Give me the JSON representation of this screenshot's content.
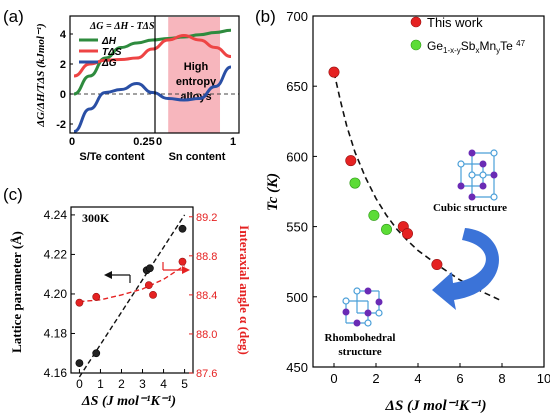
{
  "chart_data": [
    {
      "panel": "(a)",
      "type": "line",
      "equation": "ΔG = ΔH - TΔS",
      "ylabel": "ΔG/ΔH/TΔS (kJmol⁻¹)",
      "yticks": [
        "4",
        "2",
        "0",
        "-2"
      ],
      "ylim": [
        -2.6,
        5.2
      ],
      "xticks": [
        "0",
        "0.25",
        "0",
        "1"
      ],
      "xlabels": [
        "S/Te content",
        "Sn content"
      ],
      "highlight_label": [
        "High",
        "entropy",
        "alloys"
      ],
      "highlight_x": [
        0.6,
        0.93
      ],
      "zero_line": true,
      "x": [
        0.0,
        0.1,
        0.2,
        0.3,
        0.4,
        0.5,
        0.6,
        0.7,
        0.8,
        0.9,
        1.0
      ],
      "series": [
        {
          "name": "ΔH",
          "color": "#2e8b3e",
          "values": [
            0.0,
            1.2,
            2.4,
            3.1,
            3.4,
            3.6,
            3.7,
            3.8,
            3.95,
            4.1,
            4.25
          ]
        },
        {
          "name": "TΔS",
          "color": "#ee4444",
          "values": [
            1.2,
            2.0,
            2.25,
            2.3,
            2.4,
            3.0,
            3.6,
            3.9,
            3.6,
            3.1,
            2.5
          ]
        },
        {
          "name": "ΔG",
          "color": "#2a4fa5",
          "values": [
            -2.5,
            -1.0,
            0.1,
            0.3,
            0.7,
            0.1,
            -0.3,
            -0.4,
            -0.3,
            0.5,
            1.8
          ]
        }
      ]
    },
    {
      "panel": "(b)",
      "type": "scatter",
      "xlabel": "ΔS (J mol⁻¹K⁻¹)",
      "ylabel": "Tc (K)",
      "xlim": [
        -1,
        10
      ],
      "ylim": [
        450,
        700
      ],
      "xticks": [
        0,
        2,
        4,
        6,
        8,
        10
      ],
      "yticks": [
        450,
        500,
        550,
        600,
        650,
        700
      ],
      "legend_position": "top-right",
      "series": [
        {
          "name": "This work",
          "color": "#e52222",
          "points": [
            [
              0.0,
              660
            ],
            [
              0.8,
              597
            ],
            [
              3.3,
              550
            ],
            [
              3.5,
              545
            ],
            [
              4.9,
              523
            ]
          ]
        },
        {
          "name": "Ge1-x-ySbxMnyTe 47",
          "color": "#5cdc36",
          "points": [
            [
              1.0,
              581
            ],
            [
              1.9,
              558
            ],
            [
              2.5,
              548
            ]
          ]
        }
      ],
      "fit_curve": {
        "style": "dashed",
        "x": [
          0.0,
          0.3,
          0.6,
          1.0,
          1.5,
          2.0,
          2.5,
          3.0,
          3.5,
          4.0,
          5.0,
          6.0,
          7.0,
          8.0
        ],
        "y": [
          660,
          640,
          622,
          603,
          585,
          570,
          558,
          548,
          540,
          533,
          522,
          512,
          504,
          497
        ]
      },
      "annotations": [
        "Cubic structure",
        "Rhombohedral structure"
      ]
    },
    {
      "panel": "(c)",
      "type": "scatter",
      "annotation": "300K",
      "xlabel": "ΔS (J mol⁻¹K⁻¹)",
      "xlim": [
        -0.4,
        5.4
      ],
      "xticks": [
        0,
        1,
        2,
        3,
        4,
        5
      ],
      "left_axis": {
        "label": "Lattice parameter (Å)",
        "ylim": [
          4.16,
          4.244
        ],
        "ticks": [
          4.16,
          4.18,
          4.2,
          4.22,
          4.24
        ],
        "tick_labels": [
          "4.16",
          "4.18",
          "4.20",
          "4.22",
          "4.24"
        ],
        "color": "#222222",
        "points": [
          [
            0.0,
            4.165
          ],
          [
            0.8,
            4.17
          ],
          [
            3.2,
            4.212
          ],
          [
            3.35,
            4.213
          ],
          [
            4.9,
            4.233
          ]
        ],
        "fit": [
          [
            0.0,
            4.158
          ],
          [
            5.0,
            4.24
          ]
        ]
      },
      "right_axis": {
        "label": "Interaxial angle α (deg)",
        "ylim": [
          87.6,
          89.3
        ],
        "ticks": [
          87.6,
          88.0,
          88.4,
          88.8,
          89.2
        ],
        "tick_labels": [
          "87.6",
          "88.0",
          "88.4",
          "88.8",
          "89.2"
        ],
        "color": "#e52222",
        "points": [
          [
            0.0,
            88.32
          ],
          [
            0.8,
            88.38
          ],
          [
            3.3,
            88.5
          ],
          [
            3.5,
            88.4
          ],
          [
            4.9,
            88.74
          ]
        ],
        "fit": [
          [
            0.0,
            88.33
          ],
          [
            1.0,
            88.35
          ],
          [
            2.0,
            88.4
          ],
          [
            3.0,
            88.46
          ],
          [
            4.0,
            88.56
          ],
          [
            5.0,
            88.7
          ]
        ]
      }
    }
  ]
}
